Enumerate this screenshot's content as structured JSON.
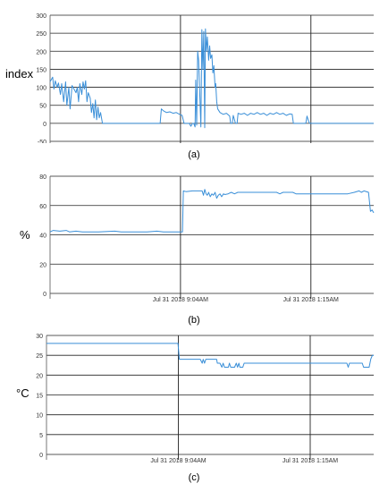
{
  "figure": {
    "captions": [
      "(a)",
      "(b)",
      "(c)"
    ]
  },
  "colors": {
    "series": "#3a8fd8",
    "grid": "#222222",
    "axis": "#555555",
    "text": "#333333"
  },
  "chart_data": [
    {
      "type": "line",
      "caption": "(a)",
      "ylabel": "index",
      "ylim": [
        -50,
        300
      ],
      "yticks": [
        -50,
        0,
        50,
        100,
        150,
        200,
        250,
        300
      ],
      "xlim": [
        0,
        100
      ],
      "grid": true,
      "vlines": [
        {
          "x": 40.3,
          "label": "Jul 31 2018  9:04AM"
        },
        {
          "x": 80.6,
          "label": "Jul 31 2018  1:15AM"
        }
      ],
      "series": [
        {
          "values": [
            [
              0,
              115
            ],
            [
              0.8,
              128
            ],
            [
              1.2,
              95
            ],
            [
              1.6,
              118
            ],
            [
              2.2,
              100
            ],
            [
              2.6,
              112
            ],
            [
              3.2,
              80
            ],
            [
              3.6,
              110
            ],
            [
              4.2,
              60
            ],
            [
              4.8,
              115
            ],
            [
              5.2,
              50
            ],
            [
              5.8,
              100
            ],
            [
              6.2,
              40
            ],
            [
              6.8,
              105
            ],
            [
              7.4,
              95
            ],
            [
              8.0,
              85
            ],
            [
              8.4,
              100
            ],
            [
              8.8,
              60
            ],
            [
              9.2,
              110
            ],
            [
              9.8,
              80
            ],
            [
              10.2,
              115
            ],
            [
              10.6,
              95
            ],
            [
              11.0,
              118
            ],
            [
              11.4,
              60
            ],
            [
              11.8,
              85
            ],
            [
              12.4,
              70
            ],
            [
              12.8,
              30
            ],
            [
              13.2,
              55
            ],
            [
              13.6,
              15
            ],
            [
              14.0,
              65
            ],
            [
              14.4,
              10
            ],
            [
              14.8,
              45
            ],
            [
              15.2,
              15
            ],
            [
              15.6,
              30
            ],
            [
              16.2,
              0
            ],
            [
              17,
              0
            ],
            [
              25,
              0
            ],
            [
              34,
              0
            ],
            [
              34.4,
              40
            ],
            [
              35,
              35
            ],
            [
              36,
              30
            ],
            [
              37,
              32
            ],
            [
              38,
              28
            ],
            [
              39,
              30
            ],
            [
              40,
              25
            ],
            [
              40.8,
              22
            ],
            [
              41.4,
              0
            ],
            [
              43,
              0
            ],
            [
              43.5,
              -8
            ],
            [
              44,
              0
            ],
            [
              44.4,
              0
            ],
            [
              44.8,
              -10
            ],
            [
              45.0,
              120
            ],
            [
              45.3,
              -5
            ],
            [
              45.6,
              200
            ],
            [
              45.9,
              175
            ],
            [
              46.2,
              100
            ],
            [
              46.6,
              -10
            ],
            [
              46.9,
              260
            ],
            [
              47.2,
              150
            ],
            [
              47.5,
              255
            ],
            [
              47.8,
              -12
            ],
            [
              48.0,
              262
            ],
            [
              48.3,
              200
            ],
            [
              48.6,
              240
            ],
            [
              49.0,
              175
            ],
            [
              49.3,
              215
            ],
            [
              49.6,
              180
            ],
            [
              50.0,
              190
            ],
            [
              50.3,
              140
            ],
            [
              50.6,
              160
            ],
            [
              51.0,
              100
            ],
            [
              51.2,
              110
            ],
            [
              51.5,
              60
            ],
            [
              51.8,
              40
            ],
            [
              52.5,
              30
            ],
            [
              53.5,
              25
            ],
            [
              54.5,
              28
            ],
            [
              55.5,
              20
            ],
            [
              55.8,
              0
            ],
            [
              56.3,
              0
            ],
            [
              56.6,
              22
            ],
            [
              57.3,
              0
            ],
            [
              57.8,
              0
            ],
            [
              58.1,
              28
            ],
            [
              59,
              25
            ],
            [
              60,
              28
            ],
            [
              61,
              22
            ],
            [
              62,
              28
            ],
            [
              63,
              25
            ],
            [
              64,
              30
            ],
            [
              65,
              25
            ],
            [
              66,
              28
            ],
            [
              67,
              22
            ],
            [
              68,
              28
            ],
            [
              69,
              25
            ],
            [
              70,
              30
            ],
            [
              71,
              25
            ],
            [
              72,
              28
            ],
            [
              73,
              22
            ],
            [
              74,
              26
            ],
            [
              74.8,
              25
            ],
            [
              75.2,
              0
            ],
            [
              78,
              0
            ],
            [
              79,
              0
            ],
            [
              79.4,
              20
            ],
            [
              79.8,
              8
            ],
            [
              80.2,
              0
            ],
            [
              90,
              0
            ],
            [
              100,
              0
            ]
          ]
        }
      ]
    },
    {
      "type": "line",
      "caption": "(b)",
      "ylabel": "%",
      "ylim": [
        0,
        80
      ],
      "yticks": [
        0,
        20,
        40,
        60,
        80
      ],
      "xlim": [
        0,
        100
      ],
      "grid": true,
      "vlines": [
        {
          "x": 40.3,
          "label": "Jul 31 2018  9:04AM"
        },
        {
          "x": 80.6,
          "label": "Jul 31 2018  1:15AM"
        }
      ],
      "series": [
        {
          "values": [
            [
              0,
              42
            ],
            [
              1,
              43
            ],
            [
              3,
              42.5
            ],
            [
              5,
              43
            ],
            [
              6,
              42
            ],
            [
              8,
              42.5
            ],
            [
              10,
              42
            ],
            [
              15,
              42
            ],
            [
              20,
              42.5
            ],
            [
              22,
              42
            ],
            [
              25,
              42
            ],
            [
              30,
              42
            ],
            [
              33,
              42.5
            ],
            [
              35,
              42
            ],
            [
              40.5,
              42
            ],
            [
              40.9,
              42
            ],
            [
              41.2,
              70
            ],
            [
              42,
              69.5
            ],
            [
              44,
              70
            ],
            [
              47,
              70
            ],
            [
              47.4,
              67
            ],
            [
              47.8,
              71
            ],
            [
              48.2,
              68
            ],
            [
              48.6,
              67
            ],
            [
              49,
              69
            ],
            [
              49.5,
              66
            ],
            [
              50,
              68
            ],
            [
              50.5,
              67
            ],
            [
              51,
              69
            ],
            [
              51.5,
              65
            ],
            [
              52,
              67
            ],
            [
              52.5,
              68
            ],
            [
              53,
              66
            ],
            [
              53.6,
              68
            ],
            [
              54,
              67.5
            ],
            [
              55,
              68
            ],
            [
              56,
              69
            ],
            [
              57,
              68
            ],
            [
              58,
              69
            ],
            [
              60,
              69
            ],
            [
              63,
              69
            ],
            [
              67,
              69
            ],
            [
              70,
              69
            ],
            [
              71,
              68
            ],
            [
              72,
              69
            ],
            [
              75,
              69
            ],
            [
              76,
              68
            ],
            [
              80,
              68
            ],
            [
              85,
              68
            ],
            [
              90,
              68
            ],
            [
              92,
              68
            ],
            [
              94,
              69
            ],
            [
              95.5,
              70
            ],
            [
              96.2,
              69
            ],
            [
              97,
              70
            ],
            [
              98.4,
              69
            ],
            [
              99,
              56
            ],
            [
              99.5,
              57
            ],
            [
              100,
              55
            ]
          ]
        }
      ]
    },
    {
      "type": "line",
      "caption": "(c)",
      "ylabel": "°C",
      "ylim": [
        0,
        30
      ],
      "yticks": [
        0,
        5,
        10,
        15,
        20,
        25,
        30
      ],
      "xlim": [
        0,
        100
      ],
      "grid": true,
      "vlines": [
        {
          "x": 40.3,
          "label": "Jul 31 2018  9:04AM"
        },
        {
          "x": 80.6,
          "label": "Jul 31 2018  1:15AM"
        }
      ],
      "series": [
        {
          "values": [
            [
              0,
              28
            ],
            [
              10,
              28
            ],
            [
              20,
              28
            ],
            [
              30,
              28
            ],
            [
              40.2,
              28
            ],
            [
              40.6,
              24
            ],
            [
              45,
              24
            ],
            [
              47,
              24
            ],
            [
              47.6,
              23
            ],
            [
              47.9,
              24
            ],
            [
              48.3,
              23
            ],
            [
              48.7,
              24
            ],
            [
              52,
              24
            ],
            [
              52.2,
              23
            ],
            [
              53,
              23
            ],
            [
              53.6,
              22
            ],
            [
              54,
              23
            ],
            [
              54.4,
              22
            ],
            [
              55.6,
              22
            ],
            [
              55.9,
              23
            ],
            [
              56.3,
              22
            ],
            [
              57.5,
              22
            ],
            [
              58,
              23
            ],
            [
              58.4,
              22
            ],
            [
              58.8,
              23
            ],
            [
              59.1,
              22
            ],
            [
              60,
              22
            ],
            [
              60.4,
              23
            ],
            [
              63,
              23
            ],
            [
              70,
              23
            ],
            [
              80,
              23
            ],
            [
              90,
              23
            ],
            [
              91.8,
              23
            ],
            [
              92.2,
              22
            ],
            [
              92.6,
              23
            ],
            [
              96.5,
              23
            ],
            [
              96.9,
              22
            ],
            [
              98.6,
              22
            ],
            [
              99.1,
              24
            ],
            [
              99.6,
              25
            ],
            [
              100,
              25
            ]
          ]
        }
      ]
    }
  ]
}
